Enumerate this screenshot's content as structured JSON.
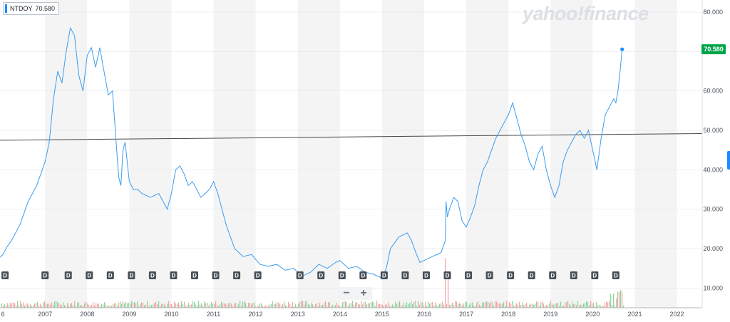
{
  "header": {
    "ticker": "NTDOY",
    "last_value": "70.580"
  },
  "watermark": "yahoo!finance",
  "zoom": {
    "minus": "−",
    "plus": "+"
  },
  "dividend_label": "D",
  "colors": {
    "line": "#3b9cf0",
    "band": "#f4f4f4",
    "gridline": "#dee2e6",
    "volume_up": "#7fd08f",
    "volume_down": "#f29a9a",
    "price_tag": "#00a54a",
    "marker": "#1a8cff",
    "badge": "#464e56",
    "trendline": "#46494d"
  },
  "chart_data": {
    "type": "line",
    "title": "NTDOY",
    "x_ticks": [
      "6",
      "2007",
      "2008",
      "2009",
      "2010",
      "2011",
      "2012",
      "2013",
      "2014",
      "2015",
      "2016",
      "2017",
      "2018",
      "2019",
      "2020",
      "2021",
      "2022"
    ],
    "y_ticks": [
      "10.000",
      "20.000",
      "30.000",
      "40.000",
      "50.000",
      "60.000",
      "70.000",
      "80.000"
    ],
    "ylim": [
      5,
      82
    ],
    "xlim": [
      2005.93,
      2022.6
    ],
    "grid": true,
    "last_price": 70.58,
    "series": [
      {
        "x": [
          2005.9,
          2006.0,
          2006.1,
          2006.2,
          2006.3,
          2006.4,
          2006.5,
          2006.6,
          2006.7,
          2006.8,
          2006.9,
          2007.0,
          2007.1,
          2007.2,
          2007.3,
          2007.4,
          2007.5,
          2007.6,
          2007.7,
          2007.8,
          2007.9,
          2008.0,
          2008.1,
          2008.2,
          2008.3,
          2008.4,
          2008.5,
          2008.6,
          2008.7,
          2008.75,
          2008.8,
          2008.85,
          2008.9,
          2009.0,
          2009.1,
          2009.2,
          2009.3,
          2009.5,
          2009.7,
          2009.9,
          2010.0,
          2010.1,
          2010.2,
          2010.3,
          2010.4,
          2010.5,
          2010.6,
          2010.7,
          2010.8,
          2010.9,
          2011.0,
          2011.1,
          2011.2,
          2011.3,
          2011.5,
          2011.7,
          2011.9,
          2012.1,
          2012.3,
          2012.5,
          2012.7,
          2012.9,
          2013.1,
          2013.3,
          2013.5,
          2013.7,
          2013.9,
          2014.0,
          2014.2,
          2014.4,
          2014.6,
          2014.8,
          2015.0,
          2015.1,
          2015.2,
          2015.4,
          2015.6,
          2015.7,
          2015.8,
          2015.9,
          2016.0,
          2016.2,
          2016.4,
          2016.5,
          2016.52,
          2016.55,
          2016.6,
          2016.7,
          2016.8,
          2016.9,
          2017.0,
          2017.1,
          2017.2,
          2017.3,
          2017.4,
          2017.5,
          2017.6,
          2017.7,
          2017.8,
          2017.9,
          2018.0,
          2018.1,
          2018.2,
          2018.3,
          2018.4,
          2018.5,
          2018.6,
          2018.7,
          2018.8,
          2018.9,
          2019.0,
          2019.1,
          2019.2,
          2019.3,
          2019.4,
          2019.5,
          2019.6,
          2019.7,
          2019.8,
          2019.9,
          2020.0,
          2020.1,
          2020.2,
          2020.3,
          2020.4,
          2020.5,
          2020.55,
          2020.6,
          2020.65,
          2020.7
        ],
        "values": [
          17.5,
          18.5,
          20.5,
          22.0,
          24.0,
          26.0,
          29.0,
          32.0,
          34.0,
          36.0,
          39.0,
          42.0,
          47.0,
          58.0,
          65.0,
          62.0,
          70.0,
          76.0,
          74.0,
          64.0,
          60.0,
          69.0,
          71.0,
          66.0,
          71.0,
          65.0,
          59.0,
          60.0,
          45.0,
          38.0,
          36.0,
          45.0,
          47.0,
          37.0,
          35.0,
          35.0,
          34.0,
          33.0,
          34.0,
          30.0,
          34.0,
          40.0,
          41.0,
          39.0,
          36.0,
          37.0,
          35.0,
          33.0,
          34.0,
          35.0,
          37.0,
          34.0,
          30.0,
          26.0,
          20.0,
          18.0,
          18.5,
          16.0,
          15.5,
          16.0,
          14.5,
          15.0,
          13.0,
          14.0,
          16.0,
          15.0,
          16.5,
          17.0,
          15.0,
          15.5,
          14.0,
          13.5,
          12.5,
          15.0,
          20.0,
          23.0,
          24.0,
          22.0,
          19.0,
          16.5,
          17.0,
          18.0,
          19.0,
          22.0,
          32.0,
          28.0,
          30.0,
          33.0,
          32.0,
          27.0,
          25.5,
          28.0,
          31.0,
          36.0,
          40.0,
          42.0,
          45.0,
          48.0,
          50.0,
          52.0,
          54.0,
          57.0,
          53.0,
          49.0,
          46.0,
          42.0,
          40.0,
          44.0,
          46.0,
          40.0,
          36.0,
          33.0,
          36.0,
          42.0,
          45.0,
          47.0,
          49.0,
          50.0,
          48.0,
          50.0,
          45.0,
          40.0,
          48.0,
          54.0,
          56.0,
          58.0,
          57.0,
          60.0,
          65.0,
          70.58
        ]
      }
    ],
    "trendline": {
      "from": [
        2005.93,
        47.5
      ],
      "to": [
        2022.6,
        49.2
      ]
    },
    "dividends_x": [
      2006.05,
      2007.0,
      2007.55,
      2008.05,
      2008.55,
      2009.05,
      2009.55,
      2010.05,
      2010.55,
      2011.05,
      2011.55,
      2012.05,
      2013.05,
      2013.55,
      2014.05,
      2014.55,
      2015.05,
      2015.55,
      2016.05,
      2016.55,
      2017.05,
      2017.55,
      2018.05,
      2018.55,
      2019.05,
      2019.55,
      2020.05,
      2020.55
    ]
  }
}
